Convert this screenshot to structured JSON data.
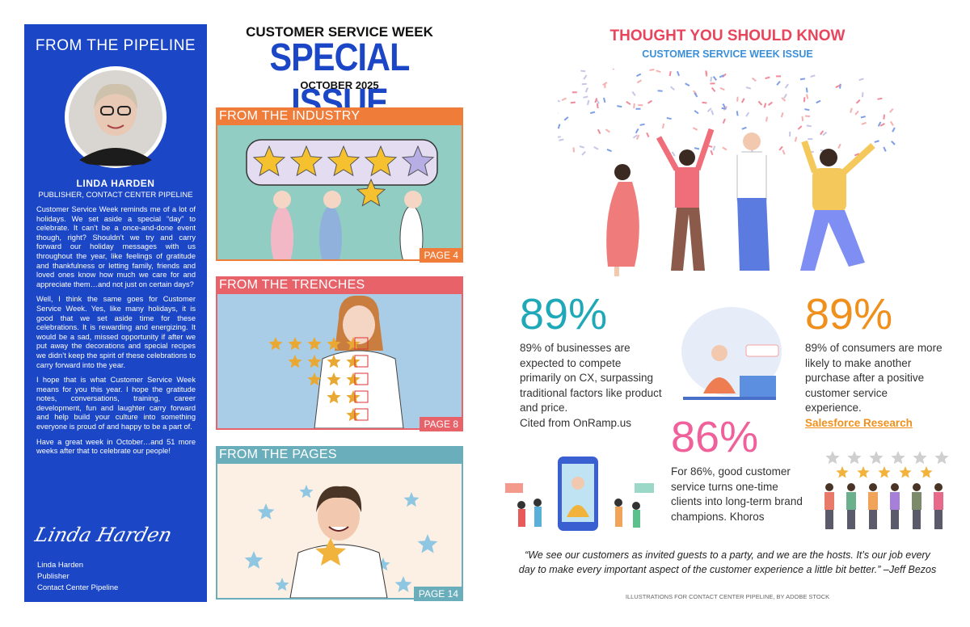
{
  "sidebar": {
    "heading": "FROM THE PIPELINE",
    "name": "LINDA HARDEN",
    "role": "PUBLISHER, CONTACT CENTER PIPELINE",
    "paragraphs": [
      "Customer Service Week reminds me of a lot of holidays. We set aside a special “day” to celebrate. It can’t be a once-and-done event though, right? Shouldn’t we try and carry forward our holiday messages with us throughout the year, like feelings of gratitude and thankfulness or letting family, friends and loved ones know how much we care for and appreciate them…and not just on certain days?",
      "Well, I think the same goes for Customer Service Week. Yes, like many holidays, it is good that we set aside time for these celebrations. It is rewarding and energizing. It would be a sad, missed opportunity if after we put away the decorations and special recipes we didn’t keep the spirit of these celebrations to carry forward into the year.",
      "I hope that is what Customer Service Week means for you this year. I hope the gratitude notes, conversations, training, career development, fun and laughter carry forward and help build your culture into something everyone is proud of and happy to be a part of.",
      "Have a great week in October…and 51 more weeks after that to celebrate our people!"
    ],
    "signature": "Linda Harden",
    "footer": [
      "Linda Harden",
      "Publisher",
      "Contact Center Pipeline"
    ]
  },
  "masthead": {
    "kicker": "CUSTOMER SERVICE WEEK",
    "title": "SPECIAL ISSUE",
    "date": "OCTOBER 2025"
  },
  "sections": [
    {
      "title": "FROM THE INDUSTRY",
      "page": "PAGE 4"
    },
    {
      "title": "FROM THE TRENCHES",
      "page": "PAGE 8"
    },
    {
      "title": "FROM THE PAGES",
      "page": "PAGE 14"
    }
  ],
  "facts": {
    "title": "THOUGHT YOU SHOULD KNOW",
    "subtitle": "CUSTOMER SERVICE WEEK ISSUE",
    "stats": [
      {
        "figure": "89%",
        "text": "89% of businesses are expected to compete primarily on CX, surpassing traditional factors like product and price.",
        "source": "Cited from OnRamp.us"
      },
      {
        "figure": "89%",
        "text": "89% of consumers are more likely to make another purchase after a positive customer service experience.",
        "source": "Salesforce Research"
      },
      {
        "figure": "86%",
        "text": "For 86%, good customer service turns one-time clients into long-term brand champions. Khoros"
      }
    ],
    "quote": "“We see our customers as invited guests to a party, and we are the hosts. It’s our job every day to make every important aspect of the customer experience a little bit better.” –Jeff Bezos",
    "credit": "ILLUSTRATIONS FOR CONTACT CENTER PIPELINE, BY ADOBE STOCK"
  }
}
